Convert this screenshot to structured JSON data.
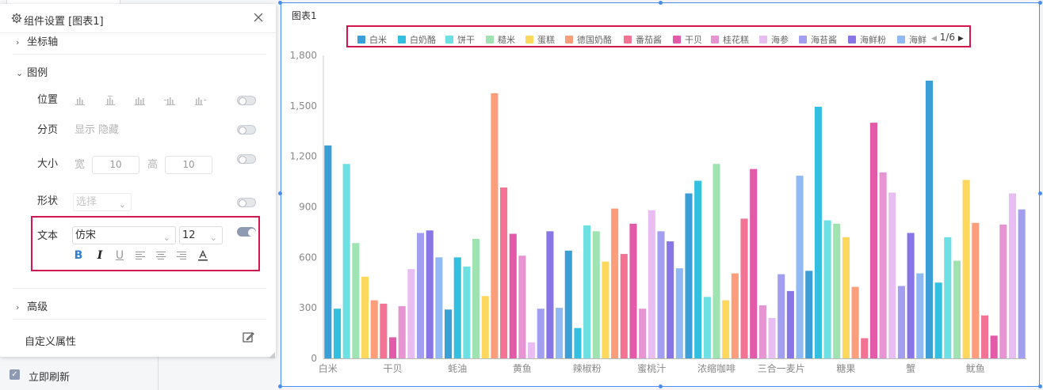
{
  "panel": {
    "title": "组件设置 [图表1]",
    "sections": {
      "axis": "坐标轴",
      "legend": "图例",
      "advanced": "高级",
      "custom_attr": "自定义属性"
    },
    "legend_settings": {
      "position_label": "位置",
      "paging_label": "分页",
      "paging_show": "显示",
      "paging_hide": "隐藏",
      "size_label": "大小",
      "width_label": "宽",
      "width_value": "10",
      "height_label": "高",
      "height_value": "10",
      "shape_label": "形状",
      "shape_placeholder": "选择",
      "text_label": "文本",
      "font_value": "仿宋",
      "font_size_value": "12",
      "text_toggle_on": true
    },
    "refresh_checkbox": {
      "label": "立即刷新",
      "checked": true
    }
  },
  "chart": {
    "title": "图表1",
    "legend_page": "1/6",
    "legend_items": [
      {
        "name": "白米",
        "color": "#3b9ed6"
      },
      {
        "name": "白奶酪",
        "color": "#33c0e0"
      },
      {
        "name": "饼干",
        "color": "#6de0e3"
      },
      {
        "name": "糙米",
        "color": "#9fe3b2"
      },
      {
        "name": "蛋糕",
        "color": "#fdd85d"
      },
      {
        "name": "德国奶酪",
        "color": "#fc9e7c"
      },
      {
        "name": "番茄酱",
        "color": "#f27393"
      },
      {
        "name": "干贝",
        "color": "#e25aa8"
      },
      {
        "name": "桂花糕",
        "color": "#e794d3"
      },
      {
        "name": "海参",
        "color": "#e8bdf1"
      },
      {
        "name": "海苔酱",
        "color": "#a39ff0"
      },
      {
        "name": "海鲜粉",
        "color": "#8876e6"
      },
      {
        "name": "海鲜",
        "color": "#91b9f4"
      }
    ]
  },
  "chart_data": {
    "type": "bar",
    "ylim": [
      0,
      1800
    ],
    "yticks": [
      "0",
      "300",
      "600",
      "900",
      "1,200",
      "1,500",
      "1,800"
    ],
    "grid": false,
    "x_labels": [
      "白米",
      "干贝",
      "蚝油",
      "黄鱼",
      "辣椒粉",
      "蜜桃汁",
      "浓缩咖啡",
      "三合一麦片",
      "糖果",
      "蟹",
      "鱿鱼"
    ],
    "colors": [
      "#3b9ed6",
      "#33c0e0",
      "#6de0e3",
      "#9fe3b2",
      "#fdd85d",
      "#fc9e7c",
      "#f27393",
      "#e25aa8",
      "#e794d3",
      "#e8bdf1",
      "#a39ff0",
      "#8876e6",
      "#91b9f4"
    ],
    "values": [
      1265,
      295,
      1155,
      685,
      485,
      345,
      325,
      125,
      310,
      530,
      745,
      760,
      600,
      290,
      600,
      545,
      710,
      370,
      1575,
      1015,
      740,
      610,
      95,
      295,
      755,
      300,
      640,
      180,
      790,
      755,
      575,
      890,
      620,
      800,
      295,
      880,
      755,
      695,
      535,
      980,
      1055,
      365,
      1155,
      345,
      505,
      830,
      1125,
      315,
      240,
      500,
      400,
      1085,
      520,
      1495,
      820,
      800,
      720,
      425,
      120,
      1400,
      1105,
      985,
      430,
      745,
      505,
      1650,
      450,
      720,
      580,
      1060,
      805,
      255,
      135,
      795,
      980,
      885
    ]
  }
}
